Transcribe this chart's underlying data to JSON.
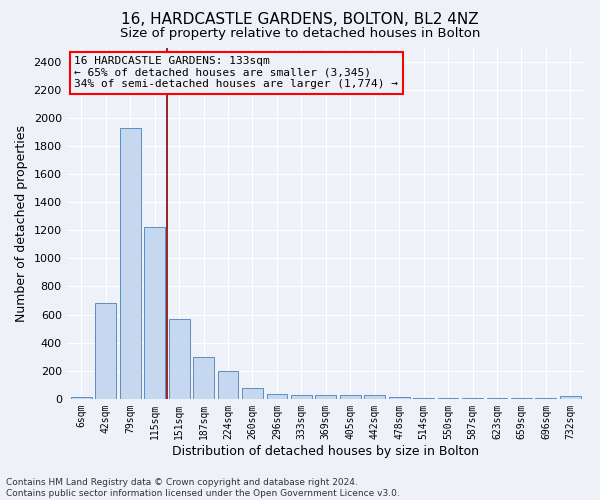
{
  "title": "16, HARDCASTLE GARDENS, BOLTON, BL2 4NZ",
  "subtitle": "Size of property relative to detached houses in Bolton",
  "xlabel": "Distribution of detached houses by size in Bolton",
  "ylabel": "Number of detached properties",
  "bar_color": "#c5d8f0",
  "bar_edge_color": "#5a8fc4",
  "background_color": "#eef2f8",
  "grid_color": "#ffffff",
  "categories": [
    "6sqm",
    "42sqm",
    "79sqm",
    "115sqm",
    "151sqm",
    "187sqm",
    "224sqm",
    "260sqm",
    "296sqm",
    "333sqm",
    "369sqm",
    "405sqm",
    "442sqm",
    "478sqm",
    "514sqm",
    "550sqm",
    "587sqm",
    "623sqm",
    "659sqm",
    "696sqm",
    "732sqm"
  ],
  "values": [
    10,
    680,
    1930,
    1220,
    570,
    300,
    200,
    75,
    35,
    25,
    25,
    25,
    25,
    10,
    5,
    5,
    5,
    5,
    5,
    5,
    20
  ],
  "ylim": [
    0,
    2500
  ],
  "yticks": [
    0,
    200,
    400,
    600,
    800,
    1000,
    1200,
    1400,
    1600,
    1800,
    2000,
    2200,
    2400
  ],
  "vline_x": 3.51,
  "vline_color": "#8b0000",
  "annotation_box_text": "16 HARDCASTLE GARDENS: 133sqm\n← 65% of detached houses are smaller (3,345)\n34% of semi-detached houses are larger (1,774) →",
  "footnote": "Contains HM Land Registry data © Crown copyright and database right 2024.\nContains public sector information licensed under the Open Government Licence v3.0.",
  "title_fontsize": 11,
  "subtitle_fontsize": 9.5,
  "ylabel_fontsize": 9,
  "xlabel_fontsize": 9,
  "annot_fontsize": 8
}
